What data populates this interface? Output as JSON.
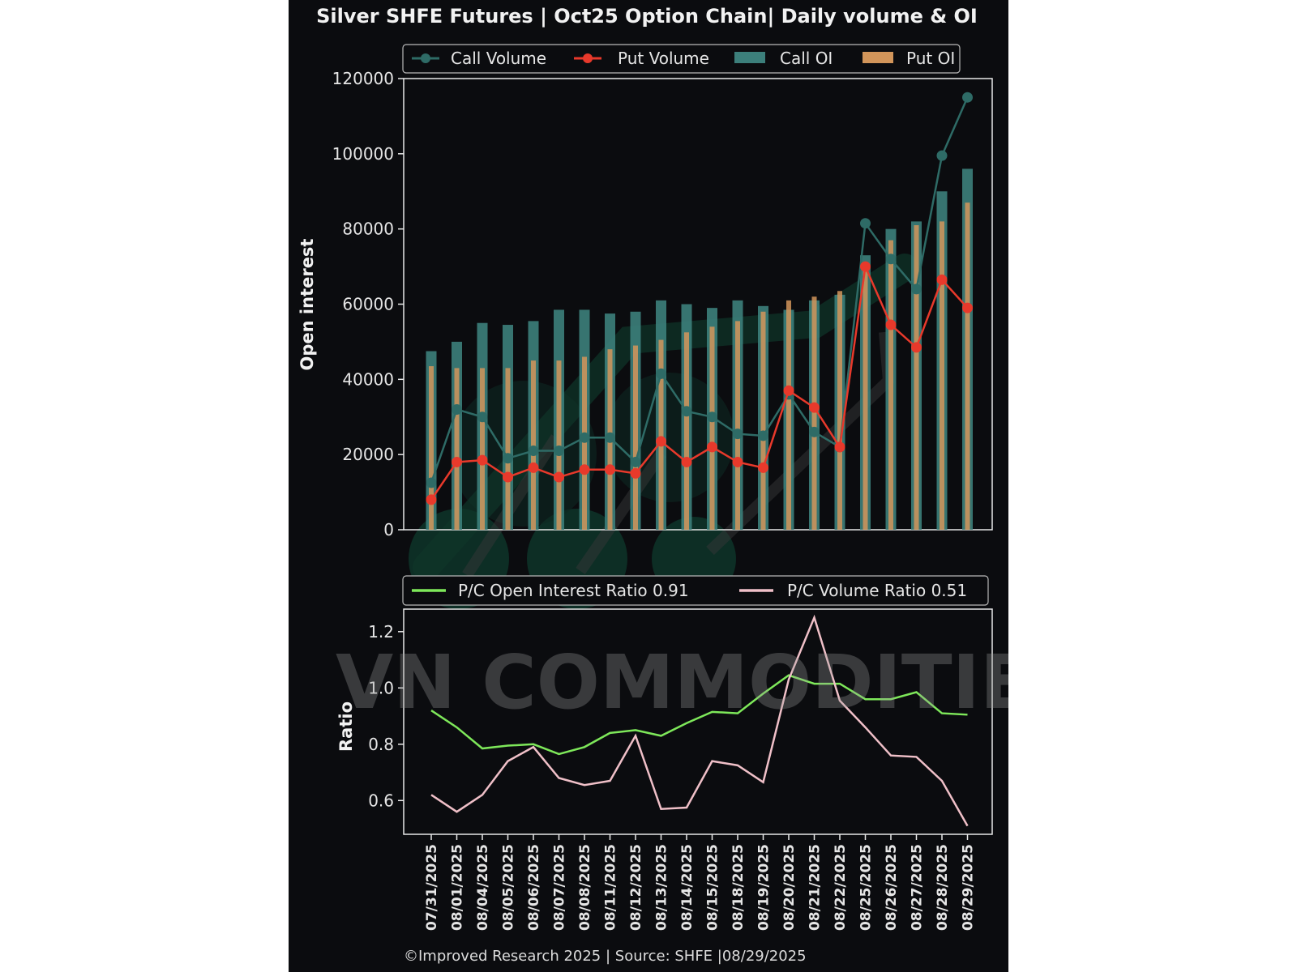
{
  "title": "Silver SHFE Futures | Oct25 Option Chain| Daily volume & OI",
  "watermark": "VN COMMODITIES",
  "footer": "©Improved Research 2025 | Source: SHFE |08/29/2025",
  "colors": {
    "background": "#0b0c0f",
    "call_volume": "#2e6b66",
    "put_volume": "#e8392b",
    "call_oi": "#3c7f7b",
    "put_oi": "#d2955a",
    "pc_oi_ratio": "#7ee85a",
    "pc_volume_ratio": "#f0c0c8"
  },
  "chart_data": [
    {
      "type": "bar",
      "ylabel": "Open interest",
      "ylim": [
        0,
        120000
      ],
      "yticks": [
        "0",
        "20000",
        "40000",
        "60000",
        "80000",
        "100000",
        "120000"
      ],
      "categories": [
        "07/31/2025",
        "08/01/2025",
        "08/04/2025",
        "08/05/2025",
        "08/06/2025",
        "08/07/2025",
        "08/08/2025",
        "08/11/2025",
        "08/12/2025",
        "08/13/2025",
        "08/14/2025",
        "08/15/2025",
        "08/18/2025",
        "08/19/2025",
        "08/20/2025",
        "08/21/2025",
        "08/22/2025",
        "08/25/2025",
        "08/26/2025",
        "08/27/2025",
        "08/28/2025",
        "08/29/2025"
      ],
      "legend": [
        "Call Volume",
        "Put Volume",
        "Call OI",
        "Put OI"
      ],
      "legend_position": "top",
      "series": [
        {
          "name": "Call OI",
          "kind": "bar",
          "values": [
            47500,
            50000,
            55000,
            54500,
            55500,
            58500,
            58500,
            57500,
            58000,
            61000,
            60000,
            59000,
            61000,
            59500,
            58500,
            61000,
            62500,
            73000,
            80000,
            82000,
            90000,
            96000
          ]
        },
        {
          "name": "Put OI",
          "kind": "bar",
          "values": [
            43500,
            43000,
            43000,
            43000,
            45000,
            45000,
            46000,
            48000,
            49000,
            50500,
            52500,
            54000,
            55500,
            58000,
            61000,
            62000,
            63500,
            70000,
            77000,
            81000,
            82000,
            87000
          ]
        },
        {
          "name": "Call Volume",
          "kind": "line",
          "values": [
            12500,
            32000,
            30000,
            19000,
            21000,
            21000,
            24500,
            24500,
            18000,
            41500,
            31500,
            30000,
            25500,
            25000,
            36000,
            26000,
            22000,
            81500,
            72000,
            64000,
            99500,
            115000
          ]
        },
        {
          "name": "Put Volume",
          "kind": "line",
          "values": [
            8000,
            18000,
            18500,
            14000,
            16500,
            14000,
            16000,
            16000,
            15000,
            23500,
            18000,
            22000,
            18000,
            16500,
            37000,
            32500,
            22000,
            70000,
            54500,
            48500,
            66500,
            59000
          ]
        }
      ]
    },
    {
      "type": "line",
      "ylabel": "Ratio",
      "ylim": [
        0.48,
        1.28
      ],
      "yticks": [
        "0.6",
        "0.8",
        "1.0",
        "1.2"
      ],
      "legend": [
        "P/C Open Interest Ratio 0.91",
        "P/C Volume Ratio 0.51"
      ],
      "legend_position": "top",
      "series": [
        {
          "name": "P/C Open Interest Ratio 0.91",
          "values": [
            0.92,
            0.86,
            0.785,
            0.795,
            0.8,
            0.765,
            0.79,
            0.84,
            0.85,
            0.83,
            0.875,
            0.915,
            0.91,
            0.98,
            1.045,
            1.015,
            1.015,
            0.96,
            0.96,
            0.985,
            0.91,
            0.905
          ]
        },
        {
          "name": "P/C Volume Ratio 0.51",
          "values": [
            0.62,
            0.56,
            0.62,
            0.74,
            0.79,
            0.68,
            0.655,
            0.67,
            0.83,
            0.57,
            0.575,
            0.74,
            0.725,
            0.665,
            1.03,
            1.25,
            0.955,
            0.86,
            0.76,
            0.755,
            0.67,
            0.51
          ]
        }
      ]
    }
  ]
}
